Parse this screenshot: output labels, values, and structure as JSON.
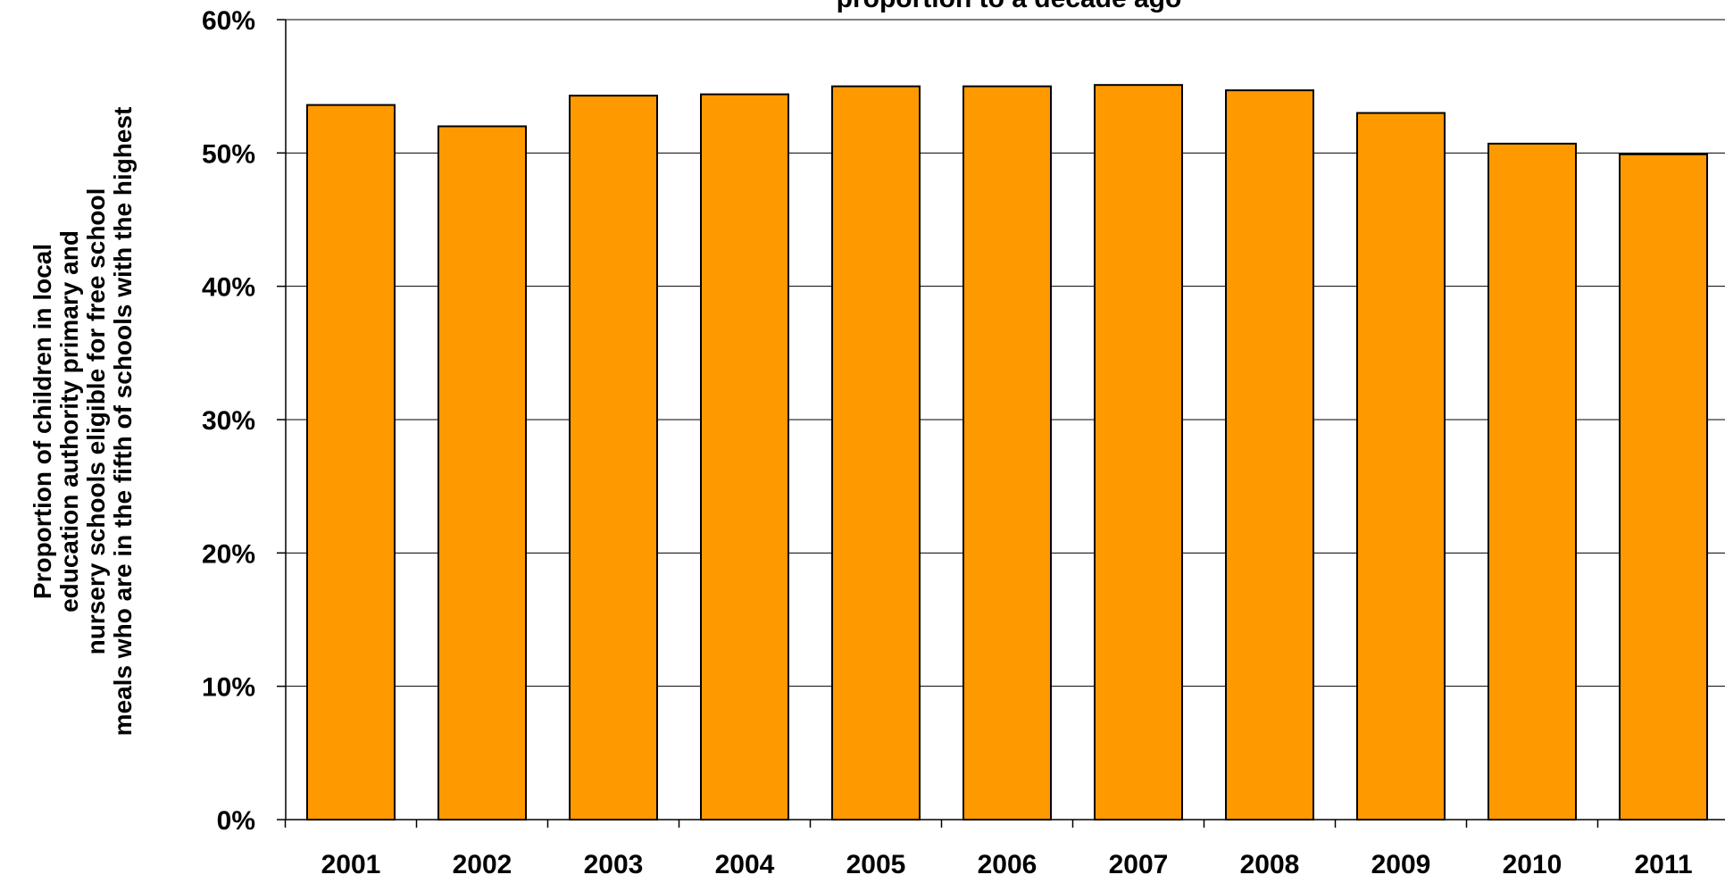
{
  "chart_data": {
    "type": "bar",
    "title": "proportion to a decade ago",
    "ylabel": "Proportion of children in local education authority primary and nursery schools eligible for free school meals who are in the fifth of schools with the highest",
    "xlabel": "",
    "categories": [
      "2001",
      "2002",
      "2003",
      "2004",
      "2005",
      "2006",
      "2007",
      "2008",
      "2009",
      "2010",
      "2011"
    ],
    "values": [
      53.6,
      52.0,
      54.3,
      54.4,
      55.0,
      55.0,
      55.1,
      54.7,
      53.0,
      50.7,
      49.9
    ],
    "ylim": [
      0,
      60
    ],
    "yticks": [
      0,
      10,
      20,
      30,
      40,
      50,
      60
    ],
    "ytick_labels": [
      "0%",
      "10%",
      "20%",
      "30%",
      "40%",
      "50%",
      "60%"
    ],
    "grid": true,
    "legend": "none",
    "bar_color": "#FF9900",
    "bar_edge_color": "#000000"
  }
}
